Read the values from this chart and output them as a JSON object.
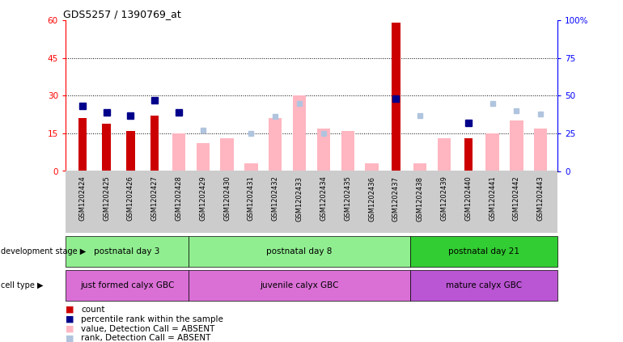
{
  "title": "GDS5257 / 1390769_at",
  "samples": [
    "GSM1202424",
    "GSM1202425",
    "GSM1202426",
    "GSM1202427",
    "GSM1202428",
    "GSM1202429",
    "GSM1202430",
    "GSM1202431",
    "GSM1202432",
    "GSM1202433",
    "GSM1202434",
    "GSM1202435",
    "GSM1202436",
    "GSM1202437",
    "GSM1202438",
    "GSM1202439",
    "GSM1202440",
    "GSM1202441",
    "GSM1202442",
    "GSM1202443"
  ],
  "count": [
    21,
    19,
    16,
    22,
    null,
    null,
    null,
    null,
    null,
    null,
    null,
    null,
    null,
    59,
    null,
    null,
    13,
    null,
    null,
    null
  ],
  "percentile_rank": [
    43,
    39,
    37,
    47,
    39,
    null,
    null,
    null,
    null,
    null,
    null,
    null,
    null,
    48,
    null,
    null,
    32,
    null,
    null,
    null
  ],
  "value_absent": [
    null,
    null,
    null,
    null,
    15,
    11,
    13,
    3,
    21,
    30,
    17,
    16,
    3,
    null,
    3,
    13,
    null,
    15,
    20,
    17
  ],
  "rank_absent": [
    null,
    null,
    null,
    null,
    null,
    27,
    null,
    25,
    36,
    45,
    25,
    null,
    null,
    null,
    37,
    null,
    null,
    45,
    40,
    38
  ],
  "ylim_left": [
    0,
    60
  ],
  "ylim_right": [
    0,
    100
  ],
  "yticks_left": [
    0,
    15,
    30,
    45,
    60
  ],
  "yticks_right": [
    0,
    25,
    50,
    75,
    100
  ],
  "count_color": "#CC0000",
  "rank_color": "#00008B",
  "value_absent_color": "#FFB6C1",
  "rank_absent_color": "#B0C4DE",
  "dev_groups": [
    {
      "label": "postnatal day 3",
      "start": 0,
      "end": 5,
      "color": "#90EE90"
    },
    {
      "label": "postnatal day 8",
      "start": 5,
      "end": 14,
      "color": "#90EE90"
    },
    {
      "label": "postnatal day 21",
      "start": 14,
      "end": 20,
      "color": "#32CD32"
    }
  ],
  "cell_groups": [
    {
      "label": "just formed calyx GBC",
      "start": 0,
      "end": 5,
      "color": "#DA70D6"
    },
    {
      "label": "juvenile calyx GBC",
      "start": 5,
      "end": 14,
      "color": "#DA70D6"
    },
    {
      "label": "mature calyx GBC",
      "start": 14,
      "end": 20,
      "color": "#BA55D3"
    }
  ]
}
